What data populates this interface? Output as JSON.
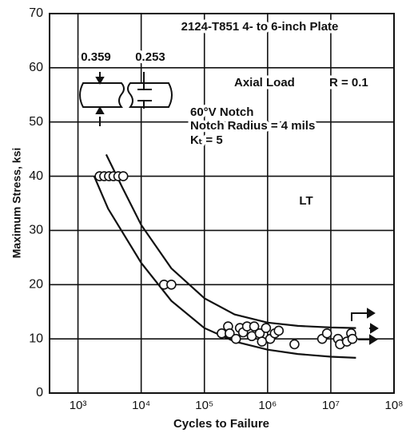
{
  "chart_data": {
    "type": "scatter",
    "title": "2124-T851 4- to 6-inch Plate",
    "xlabel": "Cycles to Failure",
    "ylabel": "Maximum Stress, ksi",
    "annotations": [
      "Axial Load",
      "R = 0.1",
      "60°V Notch",
      "Notch Radius = 4 mils",
      "Kₜ = 5",
      "LT",
      "0.359",
      "0.253"
    ],
    "xscale": "log",
    "xlim": [
      355,
      100000000
    ],
    "ylim": [
      0,
      70
    ],
    "xticks": [
      {
        "value": 1000,
        "label": "10³"
      },
      {
        "value": 10000,
        "label": "10⁴"
      },
      {
        "value": 100000,
        "label": "10⁵"
      },
      {
        "value": 1000000,
        "label": "10⁶"
      },
      {
        "value": 10000000,
        "label": "10⁷"
      },
      {
        "value": 100000000,
        "label": "10⁸"
      }
    ],
    "yticks": [
      0,
      10,
      20,
      30,
      40,
      50,
      60,
      70
    ],
    "grid": true,
    "color": "#111111",
    "x": [
      2200,
      2600,
      3100,
      3650,
      4350,
      5200,
      23000,
      30000,
      188000,
      237000,
      251000,
      316000,
      365000,
      410000,
      473000,
      562000,
      614000,
      750000,
      815000,
      944000,
      1100000,
      1300000,
      1500000,
      2660000,
      7300000,
      8700000,
      13000000,
      14000000,
      18000000,
      21000000,
      22000000
    ],
    "y": [
      40,
      40,
      40,
      40,
      40,
      40,
      20,
      20,
      11,
      12.3,
      11,
      10,
      12,
      11.2,
      12.3,
      10.5,
      12.3,
      11,
      9.5,
      12,
      10,
      11,
      11.5,
      9,
      10,
      11,
      10,
      9,
      9.5,
      11,
      10
    ],
    "lines": [
      {
        "x": [
          2800,
          5000,
          10000,
          30000,
          100000,
          300000,
          1000000,
          3000000,
          10000000,
          25000000
        ],
        "y": [
          44,
          38,
          31,
          23,
          17.5,
          14.5,
          13,
          12.4,
          12.1,
          12
        ]
      },
      {
        "x": [
          1800,
          3000,
          10000,
          30000,
          100000,
          300000,
          1000000,
          3000000,
          10000000,
          25000000
        ],
        "y": [
          40,
          34,
          24,
          17,
          12,
          9.5,
          8,
          7.2,
          6.7,
          6.5
        ]
      }
    ]
  }
}
